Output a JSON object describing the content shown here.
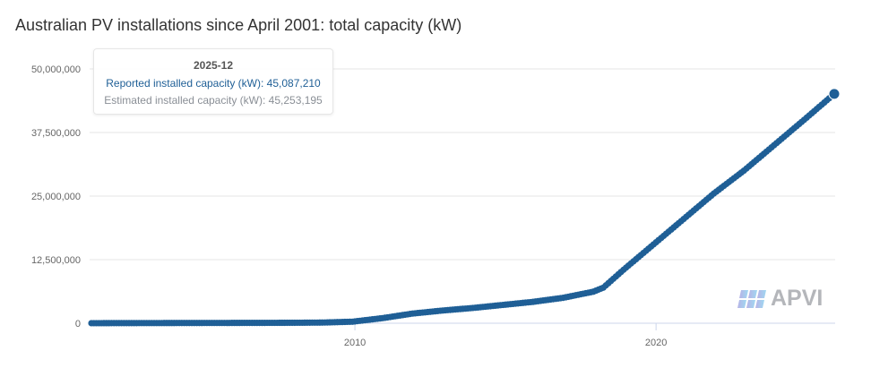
{
  "chart_data": {
    "type": "scatter",
    "title": "Australian PV installations since April 2001: total capacity (kW)",
    "xlabel": "",
    "ylabel": "",
    "xlim": [
      "2001-04",
      "2025-12"
    ],
    "ylim": [
      0,
      50000000
    ],
    "x_ticks": [
      "2010",
      "2020"
    ],
    "y_ticks": [
      "0",
      "12,500,000",
      "25,000,000",
      "37,500,000",
      "50,000,000"
    ],
    "y_tick_values": [
      0,
      12500000,
      25000000,
      37500000,
      50000000
    ],
    "grid": true,
    "series": [
      {
        "name": "Reported installed capacity (kW)",
        "color": "#1f5f96",
        "points": [
          {
            "x": "2001-04",
            "y": 10000
          },
          {
            "x": "2001-12",
            "y": 20000
          },
          {
            "x": "2002-12",
            "y": 30000
          },
          {
            "x": "2003-12",
            "y": 40000
          },
          {
            "x": "2004-12",
            "y": 50000
          },
          {
            "x": "2005-12",
            "y": 60000
          },
          {
            "x": "2006-12",
            "y": 70000
          },
          {
            "x": "2007-12",
            "y": 90000
          },
          {
            "x": "2008-12",
            "y": 130000
          },
          {
            "x": "2009-12",
            "y": 300000
          },
          {
            "x": "2010-12",
            "y": 1000000
          },
          {
            "x": "2011-12",
            "y": 1900000
          },
          {
            "x": "2012-12",
            "y": 2500000
          },
          {
            "x": "2013-12",
            "y": 3000000
          },
          {
            "x": "2014-12",
            "y": 3600000
          },
          {
            "x": "2015-12",
            "y": 4200000
          },
          {
            "x": "2016-12",
            "y": 5000000
          },
          {
            "x": "2017-12",
            "y": 6200000
          },
          {
            "x": "2018-04",
            "y": 7000000
          },
          {
            "x": "2018-12",
            "y": 10500000
          },
          {
            "x": "2019-12",
            "y": 15500000
          },
          {
            "x": "2020-12",
            "y": 20500000
          },
          {
            "x": "2021-12",
            "y": 25500000
          },
          {
            "x": "2022-12",
            "y": 30000000
          },
          {
            "x": "2023-12",
            "y": 35000000
          },
          {
            "x": "2024-12",
            "y": 40000000
          },
          {
            "x": "2025-12",
            "y": 45087210
          }
        ]
      }
    ],
    "legend": "none"
  },
  "tooltip": {
    "date": "2025-12",
    "reported": "Reported installed capacity (kW): 45,087,210",
    "estimated": "Estimated installed capacity (kW): 45,253,195"
  },
  "logo": {
    "text": "APVI"
  },
  "colors": {
    "series": "#1f5f96",
    "grid": "#e6e6e6",
    "axis": "#ccd6eb"
  }
}
